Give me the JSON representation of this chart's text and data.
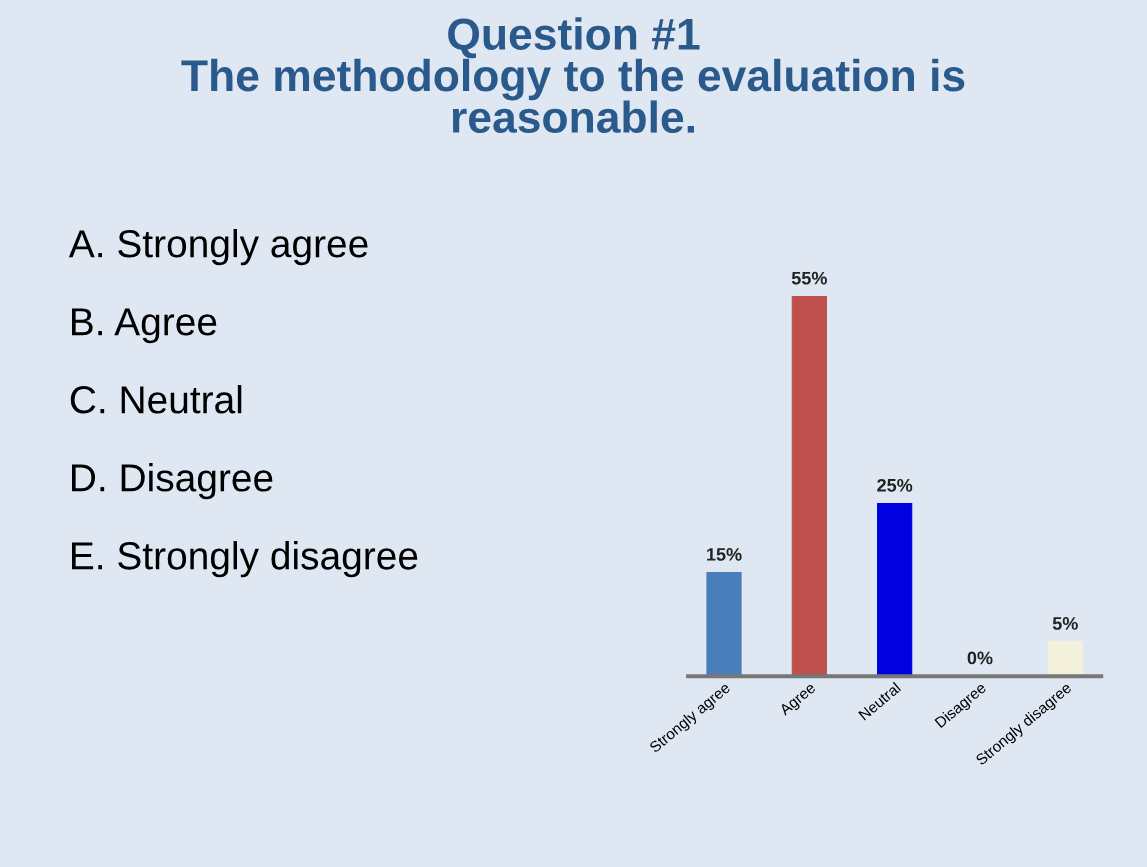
{
  "chart_data": {
    "type": "bar",
    "title": "Question #1\nThe methodology to the evaluation is\nreasonable.",
    "categories": [
      "Strongly agree",
      "Agree",
      "Neutral",
      "Disagree",
      "Strongly disagree"
    ],
    "values": [
      15,
      55,
      25,
      0,
      5
    ],
    "colors": [
      "#4a7ebb",
      "#c0504d",
      "#0000e0",
      "#7030a0",
      "#f3f1dc"
    ],
    "value_labels": [
      "15%",
      "55%",
      "25%",
      "0%",
      "5%"
    ],
    "annotations": [
      "A. Strongly agree",
      "B. Agree",
      "C. Neutral",
      "D. Disagree",
      "E. Strongly disagree"
    ],
    "grid": false,
    "legend": false
  }
}
